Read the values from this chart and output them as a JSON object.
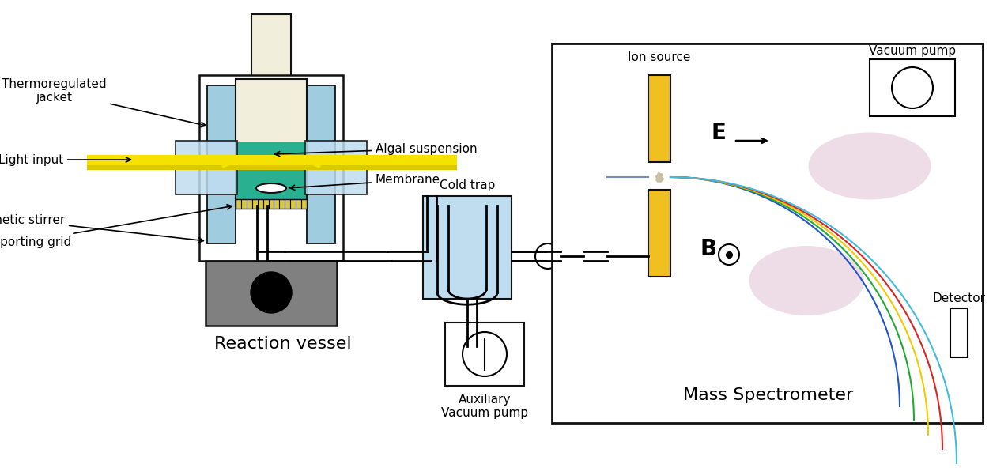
{
  "colors": {
    "green": "#28b090",
    "blue_light": "#a0cce0",
    "blue_lighter": "#c0ddf0",
    "yellow": "#f5e200",
    "beige": "#f2eedc",
    "gray": "#808080",
    "black": "#111111",
    "gold": "#f0c020",
    "pink": "#e0c0d4",
    "white": "#ffffff"
  },
  "labels": {
    "thermoregulated": "Thermoregulated\njacket",
    "light_input": "Light input",
    "magnetic_stirrer": "Magnetic stirrer",
    "supporting_grid": "Supporting grid",
    "algal_suspension": "Algal suspension",
    "membrane": "Membrane",
    "reaction_vessel": "Reaction vessel",
    "cold_trap": "Cold trap",
    "auxiliary_vp": "Auxiliary\nVacuum pump",
    "ion_source": "Ion source",
    "vacuum_pump": "Vacuum pump",
    "mass_spectrometer": "Mass Spectrometer",
    "detector": "Detector",
    "E_label": "E",
    "B_label": "B"
  },
  "beam_colors": [
    "#2255cc",
    "#22aa33",
    "#eecc00",
    "#dd2222",
    "#44bbdd"
  ],
  "lfs": 11,
  "tfs": 16
}
